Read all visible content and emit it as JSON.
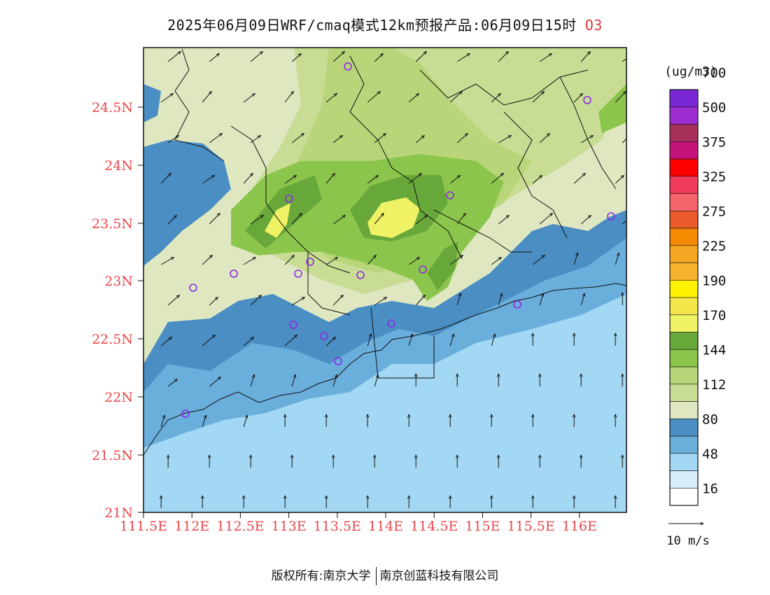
{
  "header": {
    "title": "2025年06月09日WRF/cmaq模式12km预报产品:06月09日15时",
    "species": "O3"
  },
  "axes": {
    "lat_labels": [
      "24.5N",
      "24N",
      "23.5N",
      "23N",
      "22.5N",
      "22N",
      "21.5N",
      "21N"
    ],
    "lon_labels": [
      "111.5E",
      "112E",
      "112.5E",
      "113E",
      "113.5E",
      "114E",
      "114.5E",
      "115E",
      "115.5E",
      "116E"
    ],
    "label_color": "#e8474c"
  },
  "colorbar": {
    "unit": "(ug/m3)",
    "colors": [
      "#ffffff",
      "#d6ecf9",
      "#a3d8f4",
      "#6aaedc",
      "#4a8ec4",
      "#dfe7c1",
      "#c8dc94",
      "#b8d679",
      "#8cc54c",
      "#68a83a",
      "#f0f266",
      "#f4e54a",
      "#fff200",
      "#f7b22e",
      "#f5a623",
      "#f58a00",
      "#eb5a2a",
      "#f5646b",
      "#f03a5a",
      "#ff0000",
      "#c3137a",
      "#a5305a",
      "#9b2dd1",
      "#7a28d6"
    ],
    "labels": [
      "16",
      "48",
      "80",
      "112",
      "144",
      "170",
      "190",
      "225",
      "275",
      "325",
      "375",
      "500",
      "700"
    ]
  },
  "wind_legend": {
    "label": "10 m/s"
  },
  "footer": {
    "left": "版权所有:南京大学",
    "right": "南京创蓝科技有限公司"
  }
}
